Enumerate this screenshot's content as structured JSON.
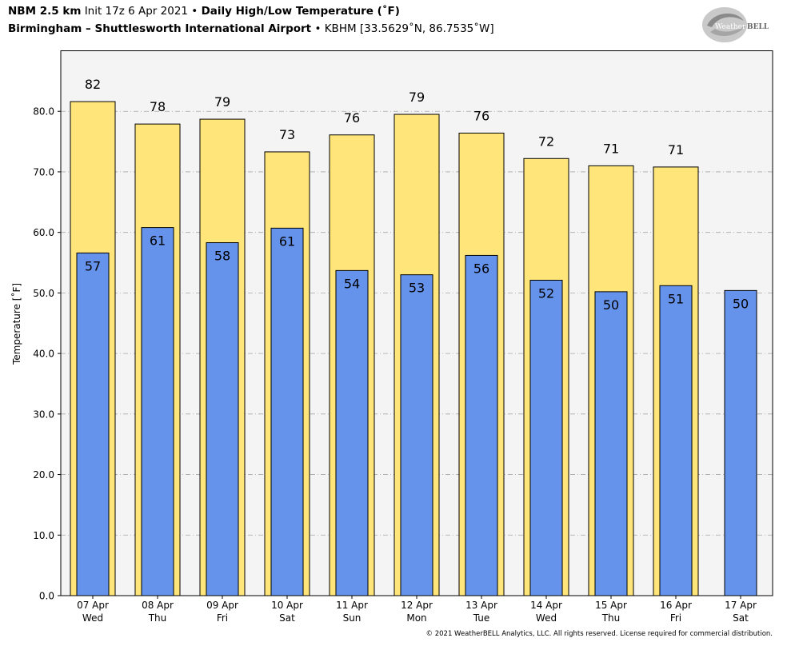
{
  "header": {
    "model_name": "NBM 2.5 km",
    "init_text": "Init 17z 6 Apr 2021",
    "bullet": "•",
    "product": "Daily High/Low Temperature (˚F)",
    "station_name": "Birmingham – Shuttlesworth International Airport",
    "station_info": "KBHM [33.5629˚N, 86.7535˚W]"
  },
  "logo": {
    "text_weather": "Weather",
    "text_bell": "BELL",
    "icon": "weatherbell-swirl-logo"
  },
  "copyright": "© 2021 WeatherBELL Analytics, LLC. All rights reserved. License required for commercial distribution.",
  "colors": {
    "high_bar": "#ffe57a",
    "low_bar": "#6593eb",
    "plot_bg": "#f4f4f4",
    "grid": "#a8a8a8"
  },
  "chart_data": {
    "type": "bar",
    "ylabel": "Temperature [˚F]",
    "ylim": [
      0,
      90
    ],
    "yticks": [
      "0.0",
      "10.0",
      "20.0",
      "30.0",
      "40.0",
      "50.0",
      "60.0",
      "70.0",
      "80.0"
    ],
    "grid": "horizontal dashed",
    "categories": [
      [
        "07 Apr",
        "Wed"
      ],
      [
        "08 Apr",
        "Thu"
      ],
      [
        "09 Apr",
        "Fri"
      ],
      [
        "10 Apr",
        "Sat"
      ],
      [
        "11 Apr",
        "Sun"
      ],
      [
        "12 Apr",
        "Mon"
      ],
      [
        "13 Apr",
        "Tue"
      ],
      [
        "14 Apr",
        "Wed"
      ],
      [
        "15 Apr",
        "Thu"
      ],
      [
        "16 Apr",
        "Fri"
      ],
      [
        "17 Apr",
        "Sat"
      ]
    ],
    "series": [
      {
        "values": [
          81.6,
          77.9,
          78.7,
          73.3,
          76.1,
          79.5,
          76.4,
          72.2,
          71.0,
          70.8,
          null
        ],
        "labels": [
          "82",
          "78",
          "79",
          "73",
          "76",
          "79",
          "76",
          "72",
          "71",
          "71",
          ""
        ]
      },
      {
        "values": [
          56.6,
          60.8,
          58.3,
          60.7,
          53.7,
          53.0,
          56.2,
          52.1,
          50.2,
          51.2,
          50.4
        ],
        "labels": [
          "57",
          "61",
          "58",
          "61",
          "54",
          "53",
          "56",
          "52",
          "50",
          "51",
          "50"
        ]
      }
    ]
  }
}
